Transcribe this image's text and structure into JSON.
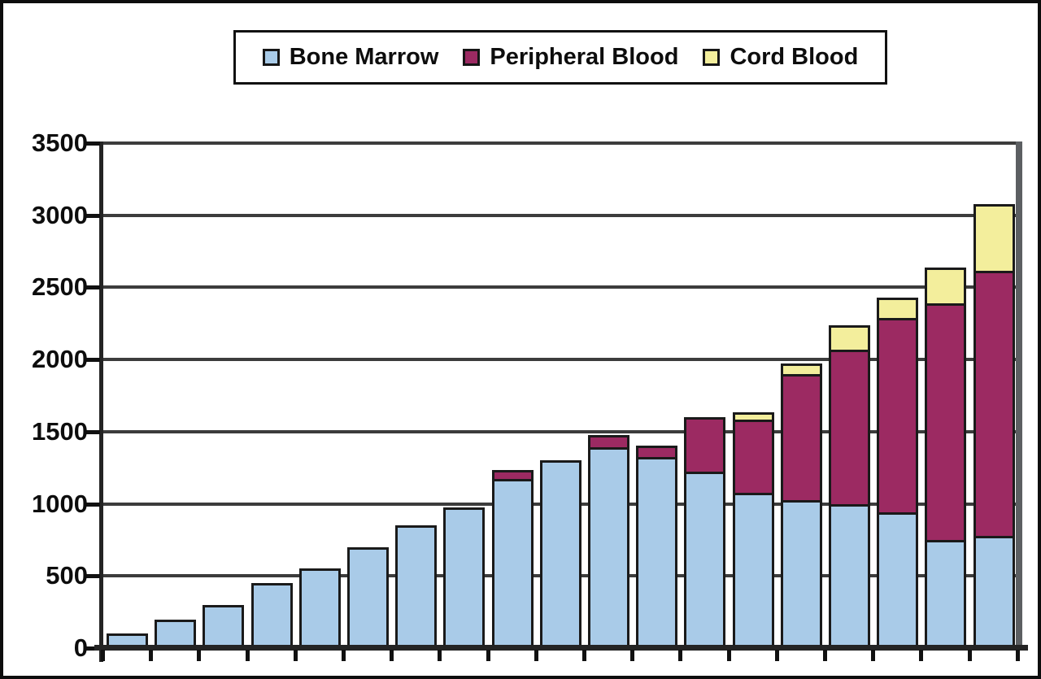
{
  "chart_data": {
    "type": "bar",
    "stacked": true,
    "title": "",
    "bar_count": 19,
    "series": [
      {
        "name": "Bone Marrow",
        "color": "#a9cbe8",
        "values": [
          100,
          200,
          300,
          450,
          550,
          700,
          850,
          975,
          1175,
          1300,
          1390,
          1325,
          1225,
          1075,
          1025,
          1000,
          940,
          750,
          775
        ]
      },
      {
        "name": "Peripheral Blood",
        "color": "#9c2a62",
        "values": [
          0,
          0,
          0,
          0,
          0,
          0,
          0,
          0,
          60,
          0,
          85,
          80,
          375,
          510,
          875,
          1070,
          1350,
          1640,
          1840
        ]
      },
      {
        "name": "Cord Blood",
        "color": "#f3ee9c",
        "values": [
          0,
          0,
          0,
          0,
          0,
          0,
          0,
          0,
          0,
          0,
          0,
          0,
          0,
          50,
          75,
          170,
          140,
          250,
          460
        ]
      }
    ],
    "ylabel": "",
    "xlabel": "",
    "ylim": [
      0,
      3500
    ],
    "ytick_step": 500,
    "yticks": [
      0,
      500,
      1000,
      1500,
      2000,
      2500,
      3000,
      3500
    ],
    "x_tick_labels": [],
    "grid": true,
    "legend_position": "top"
  },
  "style_colors": {
    "bone_marrow_fill": "#a9cbe8",
    "peripheral_blood_fill": "#9c2a62",
    "cord_blood_fill": "#f3ee9c",
    "gridline": "#3c3c3c",
    "axis": "#242424",
    "bar_border": "#1a1a1a",
    "plot_right_border": "#5c5f62",
    "text": "#0d0d0d",
    "background": "#ffffff"
  }
}
